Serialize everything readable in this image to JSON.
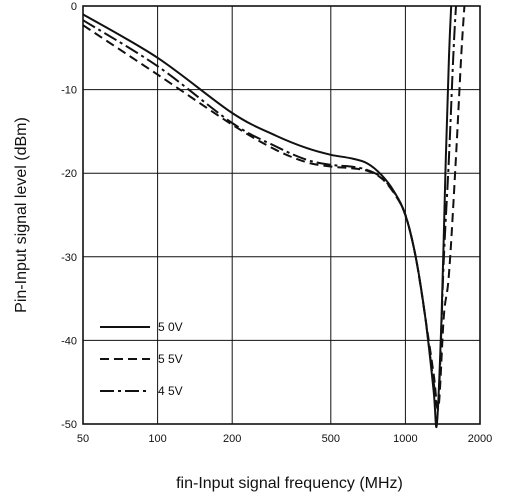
{
  "chart_data": {
    "type": "line",
    "xlabel": "fin-Input signal frequency (MHz)",
    "ylabel": "Pin-Input signal level (dBm)",
    "x_scale": "log",
    "xlim": [
      50,
      2000
    ],
    "ylim": [
      -50,
      0
    ],
    "x_ticks": [
      50,
      100,
      200,
      500,
      1000,
      2000
    ],
    "x_tick_labels": [
      "50",
      "100",
      "200",
      "500",
      "1000",
      "2000"
    ],
    "y_ticks": [
      0,
      -10,
      -20,
      -30,
      -40,
      -50
    ],
    "y_tick_labels": [
      "0",
      "-10",
      "-20",
      "-30",
      "-40",
      "-50"
    ],
    "grid": true,
    "legend_position": "bottom-left",
    "series": [
      {
        "name": "5 0V",
        "dash": "solid",
        "points": [
          [
            50,
            -1
          ],
          [
            100,
            -6.2
          ],
          [
            200,
            -12.8
          ],
          [
            300,
            -15.5
          ],
          [
            400,
            -17
          ],
          [
            500,
            -17.8
          ],
          [
            600,
            -18.2
          ],
          [
            700,
            -18.8
          ],
          [
            800,
            -20.2
          ],
          [
            900,
            -22.2
          ],
          [
            1000,
            -25
          ],
          [
            1100,
            -30
          ],
          [
            1200,
            -37
          ],
          [
            1300,
            -46
          ],
          [
            1340,
            -50
          ],
          [
            1400,
            -37
          ],
          [
            1450,
            -20
          ],
          [
            1500,
            -6
          ],
          [
            1530,
            0
          ]
        ]
      },
      {
        "name": "5 5V",
        "dash": "dashed",
        "points": [
          [
            50,
            -2.3
          ],
          [
            100,
            -8.2
          ],
          [
            200,
            -14.2
          ],
          [
            300,
            -17.2
          ],
          [
            400,
            -18.7
          ],
          [
            500,
            -19.2
          ],
          [
            600,
            -19.4
          ],
          [
            700,
            -19.7
          ],
          [
            800,
            -20.6
          ],
          [
            900,
            -22.4
          ],
          [
            1000,
            -25
          ],
          [
            1100,
            -30
          ],
          [
            1200,
            -37
          ],
          [
            1300,
            -44
          ],
          [
            1360,
            -48
          ],
          [
            1430,
            -37
          ],
          [
            1500,
            -32
          ],
          [
            1600,
            -18
          ],
          [
            1680,
            -6
          ],
          [
            1730,
            0
          ]
        ]
      },
      {
        "name": "4 5V",
        "dash": "dashdot",
        "points": [
          [
            50,
            -1.7
          ],
          [
            100,
            -7.2
          ],
          [
            200,
            -14
          ],
          [
            300,
            -16.8
          ],
          [
            400,
            -18.4
          ],
          [
            500,
            -19
          ],
          [
            600,
            -19.2
          ],
          [
            700,
            -19.6
          ],
          [
            800,
            -20.5
          ],
          [
            900,
            -22.3
          ],
          [
            1000,
            -25
          ],
          [
            1100,
            -30
          ],
          [
            1200,
            -37
          ],
          [
            1300,
            -45
          ],
          [
            1360,
            -47
          ],
          [
            1430,
            -30
          ],
          [
            1500,
            -18
          ],
          [
            1560,
            -6
          ],
          [
            1600,
            0
          ]
        ]
      }
    ]
  }
}
